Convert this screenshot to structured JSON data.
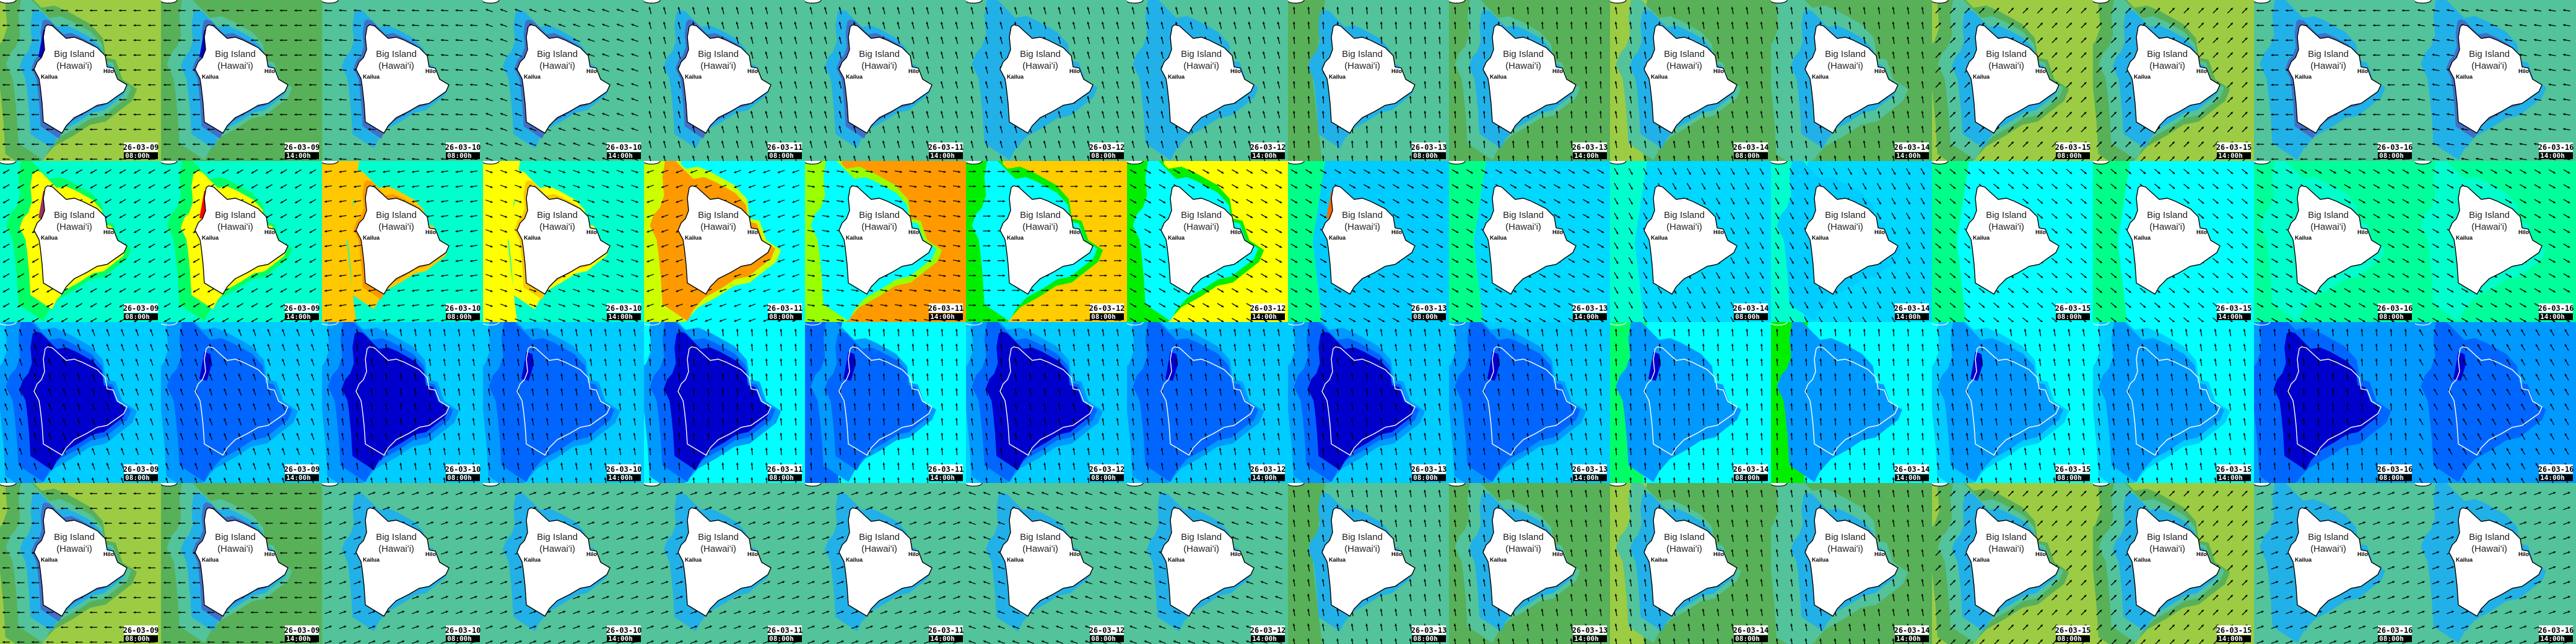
{
  "map_labels": {
    "island": "Big Island",
    "island_sub": "(Hawai'i)",
    "town_west": "Kailua",
    "town_east": "Hilo"
  },
  "rows": [
    {
      "labels": true,
      "outline_color": "#000000",
      "island_fill": "#ffffff",
      "tiles": [
        {
          "date": "26-03-09",
          "time": "08:00h",
          "bg": "#9ccc44",
          "halos": [
            "#58b058",
            "#52c39a",
            "#22b0e8",
            "#4070c8"
          ],
          "spot": "#0000c0",
          "arrow_deg": 180
        },
        {
          "date": "26-03-09",
          "time": "14:00h",
          "bg": "#58b058",
          "halos": [
            "#58b058",
            "#52c39a",
            "#22b0e8",
            "#4070c8"
          ],
          "spot": "#0000c0",
          "arrow_deg": 180
        },
        {
          "date": "26-03-10",
          "time": "08:00h",
          "bg": "#52c39a",
          "halos": [
            null,
            null,
            "#22b0e8",
            "#4070c8"
          ],
          "arrow_deg": 175
        },
        {
          "date": "26-03-10",
          "time": "14:00h",
          "bg": "#52c39a",
          "halos": [
            null,
            null,
            "#22b0e8",
            "#4070c8"
          ],
          "arrow_deg": 160
        },
        {
          "date": "26-03-11",
          "time": "08:00h",
          "bg": "#52c39a",
          "halos": [
            null,
            null,
            "#22b0e8",
            "#4070c8"
          ],
          "arrow_deg": 105
        },
        {
          "date": "26-03-11",
          "time": "14:00h",
          "bg": "#52c39a",
          "halos": [
            null,
            null,
            "#22b0e8",
            "#4070c8"
          ],
          "arrow_deg": 105
        },
        {
          "date": "26-03-12",
          "time": "08:00h",
          "bg": "#52c39a",
          "halos": [
            null,
            "#22b0e8",
            "#22b0e8",
            null
          ],
          "arrow_deg": 105
        },
        {
          "date": "26-03-12",
          "time": "14:00h",
          "bg": "#52c39a",
          "halos": [
            null,
            "#22b0e8",
            "#22b0e8",
            null
          ],
          "arrow_deg": 105
        },
        {
          "date": "26-03-13",
          "time": "08:00h",
          "bg": "#52c39a",
          "left": "#58b058",
          "halos": [
            null,
            null,
            "#22b0e8",
            null
          ],
          "arrow_deg": 95
        },
        {
          "date": "26-03-13",
          "time": "14:00h",
          "bg": "#58b058",
          "halos": [
            null,
            "#52c39a",
            "#22b0e8",
            null
          ],
          "arrow_deg": 95
        },
        {
          "date": "26-03-14",
          "time": "08:00h",
          "bg": "#58b058",
          "left": "#9ccc44",
          "halos": [
            null,
            "#52c39a",
            "#22b0e8",
            null
          ],
          "arrow_deg": 100
        },
        {
          "date": "26-03-14",
          "time": "14:00h",
          "bg": "#58b058",
          "halos": [
            "#52c39a",
            "#52c39a",
            "#22b0e8",
            null
          ],
          "arrow_deg": 100
        },
        {
          "date": "26-03-15",
          "time": "08:00h",
          "bg": "#9ccc44",
          "halos": [
            "#58b058",
            "#52c39a",
            "#22b0e8",
            null
          ],
          "arrow_deg": 45
        },
        {
          "date": "26-03-15",
          "time": "14:00h",
          "bg": "#9ccc44",
          "halos": [
            "#58b058",
            "#52c39a",
            "#22b0e8",
            null
          ],
          "arrow_deg": 45
        },
        {
          "date": "26-03-16",
          "time": "08:00h",
          "bg": "#52c39a",
          "halos": [
            null,
            "#22b0e8",
            "#22b0e8",
            "#4070c8"
          ],
          "arrow_deg": 180
        },
        {
          "date": "26-03-16",
          "time": "14:00h",
          "bg": "#52c39a",
          "halos": [
            null,
            "#22b0e8",
            "#22b0e8",
            "#4070c8"
          ],
          "arrow_deg": 170
        }
      ]
    },
    {
      "labels": true,
      "outline_color": "#000000",
      "island_fill": "#ffffff",
      "tiles": [
        {
          "date": "26-03-09",
          "time": "08:00h",
          "bg": "#00ffcc",
          "halos": [
            null,
            "#00ff66",
            "#ffff00",
            null
          ],
          "spot": "#a03060",
          "arrow_deg": 210
        },
        {
          "date": "26-03-09",
          "time": "14:00h",
          "bg": "#00ffcc",
          "halos": [
            null,
            "#00ff66",
            "#ffff00",
            null
          ],
          "spot": "#ff0000",
          "arrow_deg": 210
        },
        {
          "date": "26-03-10",
          "time": "08:00h",
          "bg": "#00ffcc",
          "left": "#ffc800",
          "halos": [
            null,
            null,
            "#ffc800",
            "#ff9900"
          ],
          "arrow_deg": 190
        },
        {
          "date": "26-03-10",
          "time": "14:00h",
          "bg": "#00ffcc",
          "left": "#ffff00",
          "halos": [
            null,
            null,
            "#ffff00",
            "#ffc800"
          ],
          "arrow_deg": 340
        },
        {
          "date": "26-03-11",
          "time": "08:00h",
          "bg": "#00ffff",
          "left": "#ccff00",
          "halos": [
            "#ccff00",
            "#ff9900",
            null,
            null
          ],
          "arrow_deg": 200
        },
        {
          "date": "26-03-11",
          "time": "14:00h",
          "bg": "#ff9900",
          "left": "#99ff00",
          "halos": [
            "#99ff00",
            "#00ffff",
            null,
            null
          ],
          "arrow_deg": 350
        },
        {
          "date": "26-03-12",
          "time": "08:00h",
          "bg": "#ffcc00",
          "left": "#00ee00",
          "halos": [
            "#00ee00",
            "#00ffff",
            null,
            null
          ],
          "arrow_deg": 0
        },
        {
          "date": "26-03-12",
          "time": "14:00h",
          "bg": "#ffff00",
          "left": "#00ee00",
          "halos": [
            "#00ee00",
            "#00ffff",
            null,
            null
          ],
          "arrow_deg": 330
        },
        {
          "date": "26-03-13",
          "time": "08:00h",
          "bg": "#00ccff",
          "left": "#00ff88",
          "halos": [
            null,
            null,
            null,
            null
          ],
          "spot": "#ff6600",
          "arrow_deg": 330
        },
        {
          "date": "26-03-13",
          "time": "14:00h",
          "bg": "#00d8ff",
          "left": "#00ff88",
          "halos": [
            null,
            null,
            null,
            null
          ],
          "arrow_deg": 330
        },
        {
          "date": "26-03-14",
          "time": "08:00h",
          "bg": "#00d8ff",
          "left": "#00ffcc",
          "halos": [
            null,
            null,
            null,
            null
          ],
          "arrow_deg": 300
        },
        {
          "date": "26-03-14",
          "time": "14:00h",
          "bg": "#00d8ff",
          "left": "#00ffcc",
          "halos": [
            null,
            "#00ccff",
            null,
            null
          ],
          "arrow_deg": 300
        },
        {
          "date": "26-03-15",
          "time": "08:00h",
          "bg": "#00ffff",
          "left": "#00ff88",
          "halos": [
            null,
            null,
            null,
            null
          ],
          "arrow_deg": 320
        },
        {
          "date": "26-03-15",
          "time": "14:00h",
          "bg": "#00ffff",
          "left": "#00ff88",
          "halos": [
            null,
            null,
            null,
            null
          ],
          "arrow_deg": 320
        },
        {
          "date": "26-03-16",
          "time": "08:00h",
          "bg": "#00ff99",
          "halos": [
            null,
            "#00ffcc",
            null,
            null
          ],
          "arrow_deg": 330
        },
        {
          "date": "26-03-16",
          "time": "14:00h",
          "bg": "#00ff99",
          "halos": [
            null,
            "#00ffcc",
            null,
            null
          ],
          "arrow_deg": 330
        }
      ]
    },
    {
      "labels": false,
      "outline_color": "#ffffff",
      "island_fill": "none",
      "tiles": [
        {
          "date": "26-03-09",
          "time": "08:00h",
          "bg": "#00ccff",
          "halos": [
            "#0099ff",
            "#0066ff",
            "#0000cc",
            null
          ],
          "arrow_deg": 110
        },
        {
          "date": "26-03-09",
          "time": "14:00h",
          "bg": "#00ccff",
          "halos": [
            "#0099ff",
            "#0066ff",
            null,
            null
          ],
          "spot": "#0000cc",
          "arrow_deg": 110
        },
        {
          "date": "26-03-10",
          "time": "08:00h",
          "bg": "#00ccff",
          "halos": [
            "#0099ff",
            "#0066ff",
            "#0000cc",
            "#0000cc"
          ],
          "arrow_deg": 100
        },
        {
          "date": "26-03-10",
          "time": "14:00h",
          "bg": "#00ccff",
          "halos": [
            "#0099ff",
            "#0066ff",
            null,
            null
          ],
          "spot": "#0000cc",
          "arrow_deg": 100
        },
        {
          "date": "26-03-11",
          "time": "08:00h",
          "bg": "#00ffff",
          "halos": [
            "#0099ff",
            "#0066ff",
            "#0000cc",
            null
          ],
          "arrow_deg": 95
        },
        {
          "date": "26-03-11",
          "time": "14:00h",
          "bg": "#00ffff",
          "left": "#0066ff",
          "halos": [
            null,
            "#0099ff",
            "#0066ff",
            null
          ],
          "spot": "#0000cc",
          "arrow_deg": 95
        },
        {
          "date": "26-03-12",
          "time": "08:00h",
          "bg": "#00ccff",
          "halos": [
            "#0099ff",
            "#0066ff",
            "#0000cc",
            null
          ],
          "arrow_deg": 100
        },
        {
          "date": "26-03-12",
          "time": "14:00h",
          "bg": "#00ccff",
          "halos": [
            "#0099ff",
            "#0066ff",
            null,
            null
          ],
          "spot": "#0000cc",
          "arrow_deg": 100
        },
        {
          "date": "26-03-13",
          "time": "08:00h",
          "bg": "#00ccff",
          "halos": [
            "#0099ff",
            "#0066ff",
            "#0000cc",
            null
          ],
          "arrow_deg": 100
        },
        {
          "date": "26-03-13",
          "time": "14:00h",
          "bg": "#00ccff",
          "halos": [
            "#0099ff",
            "#0066ff",
            null,
            null
          ],
          "spot": "#0000cc",
          "arrow_deg": 100
        },
        {
          "date": "26-03-14",
          "time": "08:00h",
          "bg": "#00ffff",
          "left": "#00ff66",
          "halos": [
            null,
            "#0099ff",
            null,
            null
          ],
          "spot": "#0000cc",
          "arrow_deg": 95
        },
        {
          "date": "26-03-14",
          "time": "14:00h",
          "bg": "#00ffff",
          "left": "#00ee00",
          "halos": [
            null,
            "#0099ff",
            null,
            null
          ],
          "arrow_deg": 95
        },
        {
          "date": "26-03-15",
          "time": "08:00h",
          "bg": "#00ffff",
          "halos": [
            "#00ccff",
            "#0099ff",
            null,
            null
          ],
          "spot": "#0000cc",
          "arrow_deg": 100
        },
        {
          "date": "26-03-15",
          "time": "14:00h",
          "bg": "#00ffff",
          "halos": [
            "#00ccff",
            "#0099ff",
            null,
            null
          ],
          "arrow_deg": 100
        },
        {
          "date": "26-03-16",
          "time": "08:00h",
          "bg": "#0099ff",
          "halos": [
            "#0066ff",
            "#0066ff",
            "#0000cc",
            null
          ],
          "arrow_deg": 95
        },
        {
          "date": "26-03-16",
          "time": "14:00h",
          "bg": "#0099ff",
          "halos": [
            "#0099ff",
            "#0066ff",
            null,
            null
          ],
          "spot": "#0000cc",
          "arrow_deg": 120
        }
      ]
    },
    {
      "labels": true,
      "outline_color": "#000000",
      "island_fill": "#ffffff",
      "tiles": [
        {
          "date": "26-03-09",
          "time": "08:00h",
          "bg": "#9ccc44",
          "halos": [
            "#58b058",
            "#52c39a",
            "#22b0e8",
            "#4070c8"
          ],
          "arrow_deg": 180
        },
        {
          "date": "26-03-09",
          "time": "14:00h",
          "bg": "#58b058",
          "halos": [
            "#58b058",
            "#52c39a",
            "#22b0e8",
            "#4070c8"
          ],
          "arrow_deg": 180
        },
        {
          "date": "26-03-10",
          "time": "08:00h",
          "bg": "#52c39a",
          "halos": [
            null,
            null,
            "#22b0e8",
            null
          ],
          "arrow_deg": 20
        },
        {
          "date": "26-03-10",
          "time": "14:00h",
          "bg": "#52c39a",
          "halos": [
            null,
            null,
            "#22b0e8",
            null
          ],
          "arrow_deg": 20
        },
        {
          "date": "26-03-11",
          "time": "08:00h",
          "bg": "#52c39a",
          "halos": [
            null,
            null,
            "#22b0e8",
            null
          ],
          "arrow_deg": 20
        },
        {
          "date": "26-03-11",
          "time": "14:00h",
          "bg": "#52c39a",
          "halos": [
            null,
            null,
            "#22b0e8",
            null
          ],
          "arrow_deg": 20
        },
        {
          "date": "26-03-12",
          "time": "08:00h",
          "bg": "#52c39a",
          "halos": [
            null,
            null,
            "#22b0e8",
            null
          ],
          "arrow_deg": 160
        },
        {
          "date": "26-03-12",
          "time": "14:00h",
          "bg": "#52c39a",
          "halos": [
            null,
            null,
            "#22b0e8",
            null
          ],
          "arrow_deg": 160
        },
        {
          "date": "26-03-13",
          "time": "08:00h",
          "bg": "#52c39a",
          "left": "#58b058",
          "halos": [
            null,
            null,
            "#22b0e8",
            null
          ],
          "arrow_deg": 100
        },
        {
          "date": "26-03-13",
          "time": "14:00h",
          "bg": "#58b058",
          "halos": [
            null,
            "#52c39a",
            "#22b0e8",
            null
          ],
          "arrow_deg": 100
        },
        {
          "date": "26-03-14",
          "time": "08:00h",
          "bg": "#58b058",
          "left": "#9ccc44",
          "halos": [
            null,
            "#52c39a",
            "#22b0e8",
            null
          ],
          "arrow_deg": 100
        },
        {
          "date": "26-03-14",
          "time": "14:00h",
          "bg": "#58b058",
          "halos": [
            "#52c39a",
            "#52c39a",
            "#22b0e8",
            null
          ],
          "arrow_deg": 100
        },
        {
          "date": "26-03-15",
          "time": "08:00h",
          "bg": "#9ccc44",
          "halos": [
            "#58b058",
            "#52c39a",
            "#22b0e8",
            null
          ],
          "arrow_deg": 45
        },
        {
          "date": "26-03-15",
          "time": "14:00h",
          "bg": "#9ccc44",
          "halos": [
            "#58b058",
            "#52c39a",
            "#22b0e8",
            null
          ],
          "arrow_deg": 45
        },
        {
          "date": "26-03-16",
          "time": "08:00h",
          "bg": "#52c39a",
          "halos": [
            null,
            "#22b0e8",
            "#22b0e8",
            null
          ],
          "arrow_deg": 20
        },
        {
          "date": "26-03-16",
          "time": "14:00h",
          "bg": "#52c39a",
          "halos": [
            null,
            "#22b0e8",
            "#22b0e8",
            null
          ],
          "arrow_deg": 20
        }
      ]
    }
  ]
}
